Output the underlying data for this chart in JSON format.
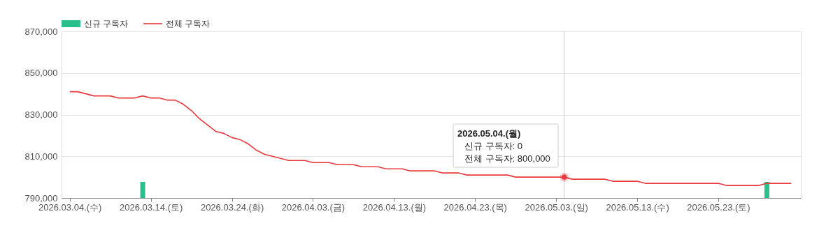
{
  "chart_data": {
    "type": "line",
    "series": [
      {
        "name": "신규 구독자",
        "type": "bar",
        "color": "#2bbf8a",
        "x": [
          "2026-03-13",
          "2026-05-29"
        ],
        "base": [
          790000,
          790000
        ],
        "values": [
          7700,
          7700
        ]
      },
      {
        "name": "전체 구독자",
        "color": "#e8383d",
        "x": [
          "2026-03-04",
          "2026-03-05",
          "2026-03-07",
          "2026-03-09",
          "2026-03-10",
          "2026-03-12",
          "2026-03-13",
          "2026-03-14",
          "2026-03-15",
          "2026-03-16",
          "2026-03-17",
          "2026-03-18",
          "2026-03-19",
          "2026-03-20",
          "2026-03-21",
          "2026-03-22",
          "2026-03-23",
          "2026-03-24",
          "2026-03-25",
          "2026-03-26",
          "2026-03-27",
          "2026-03-28",
          "2026-03-29",
          "2026-03-30",
          "2026-03-31",
          "2026-04-02",
          "2026-04-03",
          "2026-04-05",
          "2026-04-06",
          "2026-04-08",
          "2026-04-09",
          "2026-04-11",
          "2026-04-12",
          "2026-04-14",
          "2026-04-15",
          "2026-04-18",
          "2026-04-19",
          "2026-04-21",
          "2026-04-22",
          "2026-04-27",
          "2026-04-28",
          "2026-05-04",
          "2026-05-05",
          "2026-05-09",
          "2026-05-10",
          "2026-05-13",
          "2026-05-14",
          "2026-05-23",
          "2026-05-24",
          "2026-05-28",
          "2026-05-29",
          "2026-06-01"
        ],
        "values": [
          841000,
          841000,
          839000,
          839000,
          838000,
          838000,
          839000,
          838000,
          838000,
          837000,
          837000,
          835000,
          832000,
          828000,
          825000,
          822000,
          821000,
          819000,
          818000,
          816000,
          813000,
          811000,
          810000,
          809000,
          808000,
          808000,
          807000,
          807000,
          806000,
          806000,
          805000,
          805000,
          804000,
          804000,
          803000,
          803000,
          802000,
          802000,
          801000,
          801000,
          800000,
          800000,
          799000,
          799000,
          798000,
          798000,
          797000,
          797000,
          796000,
          796000,
          797000,
          797000
        ]
      }
    ],
    "xlim": [
      "2026-03-03T10:00",
      "2026-06-01T18:00"
    ],
    "xticks": [
      {
        "value": "2026-03-04",
        "label": "2026.03.04.(수)"
      },
      {
        "value": "2026-03-14",
        "label": "2026.03.14.(토)"
      },
      {
        "value": "2026-03-24",
        "label": "2026.03.24.(화)"
      },
      {
        "value": "2026-04-03",
        "label": "2026.04.03.(금)"
      },
      {
        "value": "2026-04-13",
        "label": "2026.04.13.(월)"
      },
      {
        "value": "2026-04-23",
        "label": "2026.04.23.(목)"
      },
      {
        "value": "2026-05-03",
        "label": "2026.05.03.(일)"
      },
      {
        "value": "2026-05-13",
        "label": "2026.05.13.(수)"
      },
      {
        "value": "2026-05-23",
        "label": "2026.05.23.(토)"
      }
    ],
    "ylim": [
      790000,
      870000
    ],
    "yticks": [
      {
        "value": 790000,
        "label": "790,000"
      },
      {
        "value": 810000,
        "label": "810,000"
      },
      {
        "value": 830000,
        "label": "830,000"
      },
      {
        "value": 850000,
        "label": "850,000"
      },
      {
        "value": 870000,
        "label": "870,000"
      }
    ],
    "ref_lines": [
      {
        "axis": "x",
        "value": "2026-05-04",
        "color": "#cccccc"
      }
    ],
    "annotations": [
      "2026.05.04.(월)",
      "신규 구독자: 0",
      "전체 구독자: 800,000"
    ],
    "grid": "y",
    "legend": "top left"
  }
}
